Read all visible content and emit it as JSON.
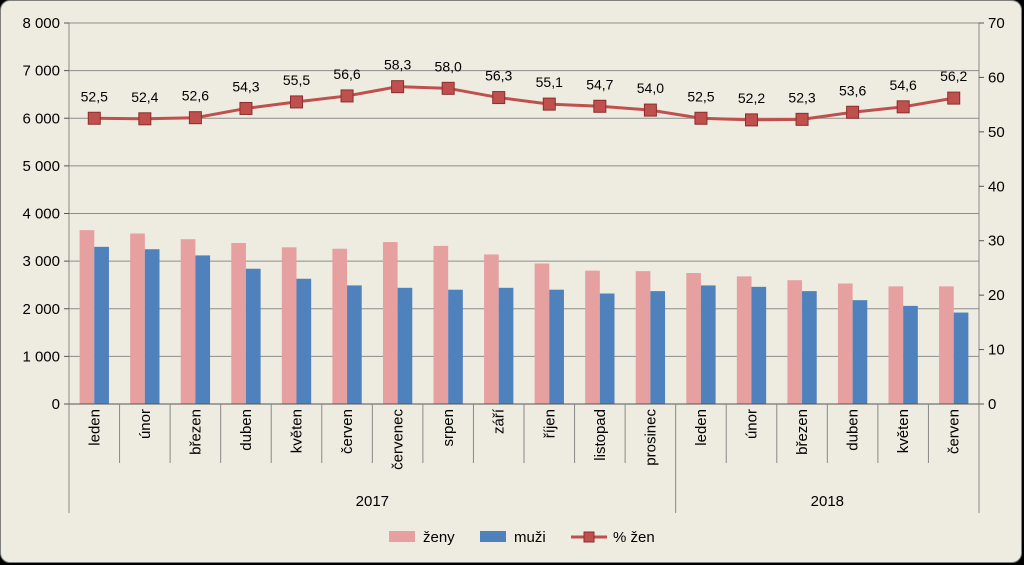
{
  "chart_data": {
    "type": "bar",
    "categories": [
      "leden",
      "únor",
      "březen",
      "duben",
      "květen",
      "červen",
      "červenec",
      "srpen",
      "září",
      "říjen",
      "listopad",
      "prosinec",
      "leden",
      "únor",
      "březen",
      "duben",
      "květen",
      "červen"
    ],
    "groups": [
      {
        "label": "2017",
        "count": 12
      },
      {
        "label": "2018",
        "count": 6
      }
    ],
    "series": [
      {
        "name": "ženy",
        "type": "bar",
        "axis": "left",
        "color": "#E6A0A0",
        "values": [
          3650,
          3580,
          3460,
          3380,
          3290,
          3260,
          3400,
          3320,
          3140,
          2950,
          2800,
          2790,
          2750,
          2680,
          2600,
          2530,
          2470,
          2470
        ]
      },
      {
        "name": "muži",
        "type": "bar",
        "axis": "left",
        "color": "#4F81BD",
        "values": [
          3300,
          3250,
          3120,
          2840,
          2630,
          2490,
          2440,
          2400,
          2440,
          2400,
          2320,
          2370,
          2490,
          2460,
          2370,
          2180,
          2060,
          1920
        ]
      },
      {
        "name": "% žen",
        "type": "line",
        "axis": "right",
        "color": "#C0504D",
        "values": [
          52.5,
          52.4,
          52.6,
          54.3,
          55.5,
          56.6,
          58.3,
          58.0,
          56.3,
          55.1,
          54.7,
          54.0,
          52.5,
          52.2,
          52.3,
          53.6,
          54.6,
          56.2
        ],
        "labels": [
          "52,5",
          "52,4",
          "52,6",
          "54,3",
          "55,5",
          "56,6",
          "58,3",
          "58,0",
          "56,3",
          "55,1",
          "54,7",
          "54,0",
          "52,5",
          "52,2",
          "52,3",
          "53,6",
          "54,6",
          "56,2"
        ]
      }
    ],
    "ylim_left": [
      0,
      8000
    ],
    "yticks_left": [
      "0",
      "1 000",
      "2 000",
      "3 000",
      "4 000",
      "5 000",
      "6 000",
      "7 000",
      "8 000"
    ],
    "ylim_right": [
      0,
      70
    ],
    "yticks_right": [
      "0",
      "10",
      "20",
      "30",
      "40",
      "50",
      "60",
      "70"
    ],
    "grid": true,
    "legend_position": "bottom"
  }
}
